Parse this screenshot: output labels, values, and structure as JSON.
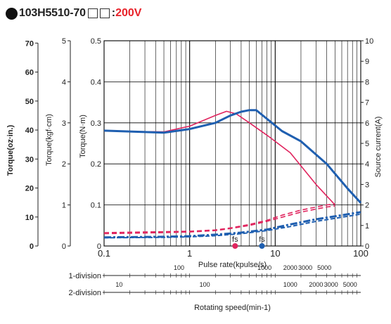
{
  "title": {
    "model": "103H5510-70",
    "colon": ":",
    "voltage": "200V"
  },
  "colors": {
    "pullout_200v": "#e0245e",
    "pullout_main": "#1f5fb0",
    "voltage_accent": "#e8222a",
    "grid": "#000000"
  },
  "chart_data": {
    "type": "line",
    "x_scale": "log",
    "xlabel": "Pulse rate(kpulse/s)",
    "xlim": [
      0.1,
      100
    ],
    "x_ticks": [
      "0.1",
      "1",
      "10",
      "100"
    ],
    "ylim": [
      0,
      0.5
    ],
    "axes": {
      "torque_nm": {
        "label": "Torque(N·m)",
        "ticks": [
          "0",
          "0.1",
          "0.2",
          "0.3",
          "0.4",
          "0.5"
        ],
        "range": [
          0,
          0.5
        ]
      },
      "torque_kgfcm": {
        "label": "Torque(kgf·cm)",
        "ticks": [
          "0",
          "1",
          "2",
          "3",
          "4",
          "5"
        ],
        "range": [
          0,
          5
        ]
      },
      "torque_ozin": {
        "label": "Torque(oz·in.)",
        "ticks": [
          "0",
          "10",
          "20",
          "30",
          "40",
          "50",
          "60",
          "70"
        ],
        "range": [
          0,
          70.8
        ]
      },
      "current": {
        "label": "Source current(A)",
        "ticks": [
          "0",
          "1",
          "2",
          "3",
          "4",
          "5",
          "6",
          "7",
          "8",
          "9",
          "10"
        ],
        "range": [
          0,
          10
        ]
      }
    },
    "speed_axes": {
      "label": "Rotating speed(min-1)",
      "one_division": {
        "label": "1-division",
        "ticks": [
          {
            "label": "100",
            "x": 0.75
          },
          {
            "label": "1000",
            "x": 7.5
          },
          {
            "label": "2000",
            "x": 15
          },
          {
            "label": "3000",
            "x": 22.5
          },
          {
            "label": "5000",
            "x": 37.5
          }
        ]
      },
      "two_division": {
        "label": "2-division",
        "ticks": [
          {
            "label": "10",
            "x": 0.15
          },
          {
            "label": "100",
            "x": 1.5
          },
          {
            "label": "1000",
            "x": 15
          },
          {
            "label": "2000",
            "x": 30
          },
          {
            "label": "3000",
            "x": 45
          },
          {
            "label": "5000",
            "x": 75
          }
        ]
      }
    },
    "series": [
      {
        "x": [
          0.1,
          0.2,
          0.5,
          1,
          2,
          2.7,
          3.5,
          5,
          8,
          15,
          30,
          50
        ],
        "values": [
          0.28,
          0.279,
          0.278,
          0.292,
          0.318,
          0.328,
          0.322,
          0.3,
          0.27,
          0.227,
          0.15,
          0.1
        ]
      },
      {
        "x": [
          0.1,
          0.2,
          0.5,
          1,
          2,
          3,
          4,
          5,
          6,
          8,
          12,
          20,
          40,
          70,
          100
        ],
        "values": [
          0.281,
          0.279,
          0.276,
          0.285,
          0.3,
          0.318,
          0.327,
          0.331,
          0.331,
          0.31,
          0.28,
          0.255,
          0.2,
          0.14,
          0.105
        ]
      },
      {
        "axis": "current",
        "x": [
          0.1,
          0.5,
          1,
          2,
          3,
          5,
          8,
          12,
          20,
          40,
          50
        ],
        "values": [
          0.6,
          0.65,
          0.68,
          0.75,
          0.85,
          1.0,
          1.2,
          1.4,
          1.65,
          1.9,
          1.95
        ]
      },
      {
        "axis": "current",
        "x": [
          0.1,
          0.5,
          1,
          2,
          3,
          5,
          8,
          12,
          20,
          40,
          50
        ],
        "values": [
          0.65,
          0.7,
          0.72,
          0.78,
          0.88,
          1.05,
          1.25,
          1.5,
          1.75,
          2.0,
          2.05
        ]
      },
      {
        "axis": "current",
        "x": [
          0.1,
          0.5,
          1,
          2,
          4,
          8,
          15,
          30,
          60,
          100
        ],
        "values": [
          0.42,
          0.45,
          0.48,
          0.55,
          0.65,
          0.8,
          1.05,
          1.3,
          1.5,
          1.65
        ]
      },
      {
        "axis": "current",
        "x": [
          0.1,
          0.5,
          1,
          2,
          4,
          8,
          15,
          30,
          60,
          100
        ],
        "values": [
          0.4,
          0.42,
          0.45,
          0.5,
          0.6,
          0.75,
          0.95,
          1.2,
          1.4,
          1.55
        ]
      }
    ],
    "markers": [
      {
        "label": "fs",
        "x": 3.4,
        "series_color": "pullout_200v"
      },
      {
        "label": "fs",
        "x": 7.0,
        "series_color": "pullout_main"
      }
    ],
    "grid": true
  }
}
